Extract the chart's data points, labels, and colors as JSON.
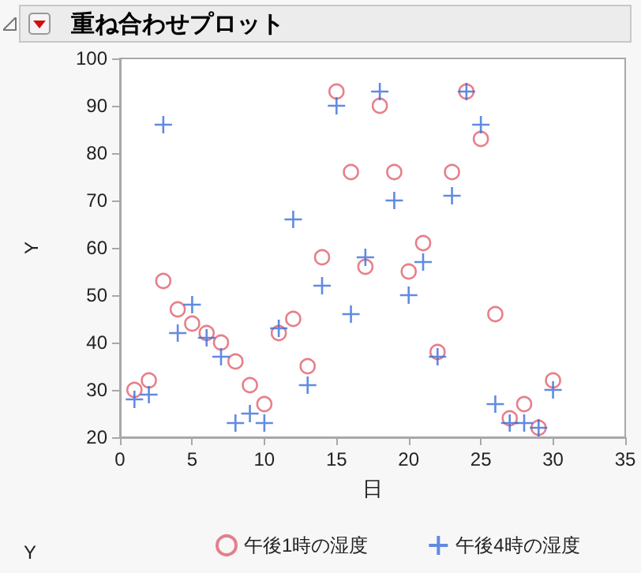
{
  "chart_data": {
    "type": "scatter",
    "title": "重ね合わせプロット",
    "xlabel": "日",
    "ylabel": "Y",
    "legend_title": "Y",
    "legend": "bottom",
    "grid": false,
    "x": [
      1,
      2,
      3,
      4,
      5,
      6,
      7,
      8,
      9,
      10,
      11,
      12,
      13,
      14,
      15,
      16,
      17,
      18,
      19,
      20,
      21,
      22,
      23,
      24,
      25,
      26,
      27,
      28,
      29,
      30
    ],
    "xlim": [
      0,
      35
    ],
    "xticks": [
      0,
      5,
      10,
      15,
      20,
      25,
      30,
      35
    ],
    "ylim": [
      20,
      100
    ],
    "yticks": [
      20,
      30,
      40,
      50,
      60,
      70,
      80,
      90,
      100
    ],
    "series": [
      {
        "name": "午後1時の湿度",
        "color": "#e0606e",
        "marker": "circle",
        "values": [
          30,
          32,
          53,
          47,
          44,
          42,
          40,
          36,
          31,
          27,
          42,
          45,
          35,
          58,
          93,
          76,
          56,
          90,
          76,
          55,
          61,
          38,
          76,
          93,
          83,
          46,
          24,
          27,
          22,
          32
        ]
      },
      {
        "name": "午後4時の湿度",
        "color": "#3a6ed8",
        "marker": "cross",
        "values": [
          28,
          29,
          86,
          42,
          48,
          41,
          37,
          23,
          25,
          23,
          43,
          66,
          31,
          52,
          90,
          46,
          58,
          93,
          70,
          50,
          57,
          37,
          71,
          93,
          86,
          27,
          23,
          23,
          22,
          30
        ]
      }
    ]
  }
}
